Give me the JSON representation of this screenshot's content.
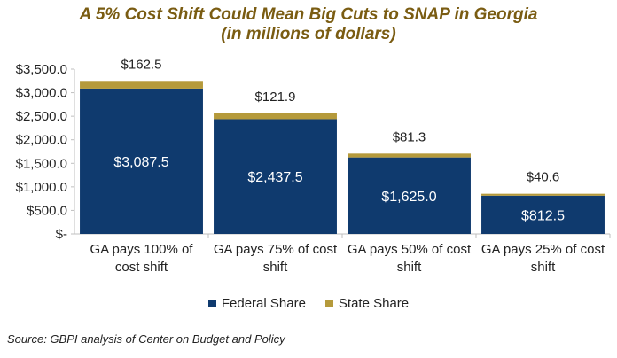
{
  "title_line1": "A 5% Cost Shift Could Mean Big Cuts to SNAP in Georgia",
  "title_line2": "(in millions of dollars)",
  "source": "Source: GBPI analysis of Center on Budget and Policy",
  "colors": {
    "federal": "#0f3a6e",
    "state": "#b59a3b"
  },
  "chart_data": {
    "type": "bar",
    "stacked": true,
    "title": "A 5% Cost Shift Could Mean Big Cuts to SNAP in Georgia (in millions of dollars)",
    "categories": [
      [
        "GA pays 100% of",
        "cost shift"
      ],
      [
        "GA pays 75% of cost",
        "shift"
      ],
      [
        "GA pays 50% of cost",
        "shift"
      ],
      [
        "GA pays 25% of cost",
        "shift"
      ]
    ],
    "series": [
      {
        "name": "Federal Share",
        "values": [
          3087.5,
          2437.5,
          1625.0,
          812.5
        ],
        "labels": [
          "$3,087.5",
          "$2,437.5",
          "$1,625.0",
          "$812.5"
        ]
      },
      {
        "name": "State Share",
        "values": [
          162.5,
          121.9,
          81.3,
          40.6
        ],
        "labels": [
          "$162.5",
          "$121.9",
          "$81.3",
          "$40.6"
        ]
      }
    ],
    "ylim": [
      0,
      3500
    ],
    "yticks": [
      {
        "value": 0,
        "label": "$-"
      },
      {
        "value": 500,
        "label": "$500.0"
      },
      {
        "value": 1000,
        "label": "$1,000.0"
      },
      {
        "value": 1500,
        "label": "$1,500.0"
      },
      {
        "value": 2000,
        "label": "$2,000.0"
      },
      {
        "value": 2500,
        "label": "$2,500.0"
      },
      {
        "value": 3000,
        "label": "$3,000.0"
      },
      {
        "value": 3500,
        "label": "$3,500.0"
      }
    ],
    "legend": "bottom",
    "grid": false
  }
}
